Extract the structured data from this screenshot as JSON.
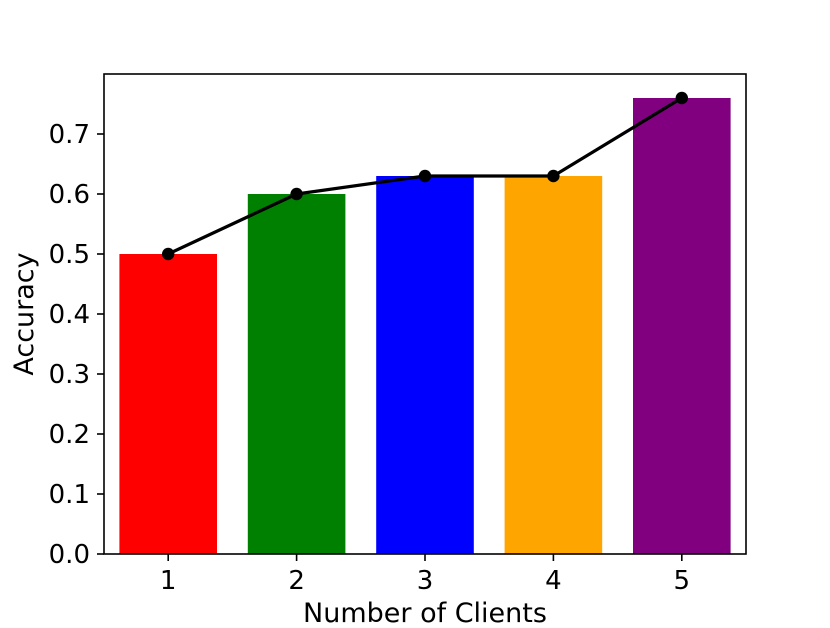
{
  "chart_data": {
    "type": "bar",
    "title": "",
    "xlabel": "Number of Clients",
    "ylabel": "Accuracy",
    "categories": [
      "1",
      "2",
      "3",
      "4",
      "5"
    ],
    "values": [
      0.5,
      0.6,
      0.63,
      0.63,
      0.76
    ],
    "bar_colors": [
      "#ff0000",
      "#008000",
      "#0000ff",
      "#ffa500",
      "#800080"
    ],
    "overlay_line": {
      "type": "line",
      "values": [
        0.5,
        0.6,
        0.63,
        0.63,
        0.76
      ],
      "color": "#000000",
      "marker": "circle"
    },
    "ylim": [
      0.0,
      0.8
    ],
    "yticks": [
      0.0,
      0.1,
      0.2,
      0.3,
      0.4,
      0.5,
      0.6,
      0.7
    ],
    "ytick_labels": [
      "0.0",
      "0.1",
      "0.2",
      "0.3",
      "0.4",
      "0.5",
      "0.6",
      "0.7"
    ],
    "grid": false,
    "legend": "none"
  }
}
